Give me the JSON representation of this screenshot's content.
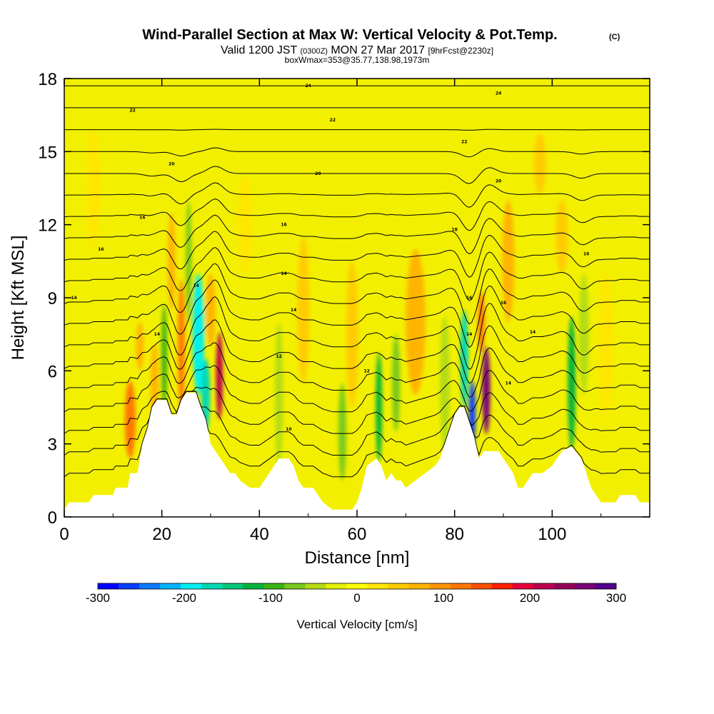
{
  "chart_data": {
    "type": "heatmap",
    "title": "Wind-Parallel Section at Max W: Vertical Velocity & Pot.Temp.",
    "title_mark": "(C)",
    "subtitle": {
      "valid": "Valid 1200 JST",
      "utc": "(0300Z)",
      "date": "MON 27 Mar 2017",
      "fcst": "[9hrFcst@2230z]"
    },
    "subsubtitle": "boxWmax=353@35.77,138.98,1973m",
    "xlabel": "Distance [nm]",
    "ylabel": "Height [Kft MSL]",
    "xlim": [
      0,
      120
    ],
    "ylim": [
      0,
      18
    ],
    "xticks": [
      "0",
      "20",
      "40",
      "60",
      "80",
      "100"
    ],
    "xtick_values": [
      0,
      20,
      40,
      60,
      80,
      100
    ],
    "yticks": [
      "0",
      "3",
      "6",
      "9",
      "12",
      "15",
      "18"
    ],
    "ytick_values": [
      0,
      3,
      6,
      9,
      12,
      15,
      18
    ],
    "colorbar": {
      "label": "Vertical Velocity [cm/s]",
      "range": [
        -300,
        300
      ],
      "tick_labels": [
        "-300",
        "-200",
        "-100",
        "0",
        "100",
        "200",
        "300"
      ],
      "tick_values": [
        -300,
        -200,
        -100,
        0,
        100,
        200,
        300
      ],
      "colors": [
        "#0000ff",
        "#0a3cff",
        "#0a78ff",
        "#00b4ff",
        "#00f0f0",
        "#00d8b4",
        "#00c878",
        "#00b43c",
        "#3cb414",
        "#78c81e",
        "#b4dc14",
        "#e6f000",
        "#ffff00",
        "#ffe600",
        "#ffcc00",
        "#ffb400",
        "#ff9600",
        "#ff7800",
        "#ff5000",
        "#ff1e00",
        "#e6003c",
        "#be0050",
        "#96005a",
        "#780078",
        "#50008c"
      ]
    },
    "terrain_kft": [
      [
        0,
        0.3
      ],
      [
        1,
        0.6
      ],
      [
        5,
        0.6
      ],
      [
        6,
        0.9
      ],
      [
        10,
        0.9
      ],
      [
        10.5,
        1.2
      ],
      [
        13,
        1.2
      ],
      [
        13.5,
        1.8
      ],
      [
        15,
        1.8
      ],
      [
        16,
        3.0
      ],
      [
        17,
        3.6
      ],
      [
        18,
        4.5
      ],
      [
        19,
        4.8
      ],
      [
        21,
        4.8
      ],
      [
        22,
        4.2
      ],
      [
        23,
        4.2
      ],
      [
        24,
        4.8
      ],
      [
        25,
        5.1
      ],
      [
        27,
        5.1
      ],
      [
        28,
        4.5
      ],
      [
        29,
        4.0
      ],
      [
        30,
        3.0
      ],
      [
        31,
        2.7
      ],
      [
        32,
        2.4
      ],
      [
        33,
        2.1
      ],
      [
        34,
        1.8
      ],
      [
        35,
        1.8
      ],
      [
        36,
        1.5
      ],
      [
        38,
        1.2
      ],
      [
        40,
        1.2
      ],
      [
        41,
        1.5
      ],
      [
        42,
        1.8
      ],
      [
        43,
        2.1
      ],
      [
        44,
        2.4
      ],
      [
        46,
        2.4
      ],
      [
        47,
        2.1
      ],
      [
        48,
        1.5
      ],
      [
        49,
        1.2
      ],
      [
        51,
        1.2
      ],
      [
        52,
        0.9
      ],
      [
        53,
        0.6
      ],
      [
        55,
        0.3
      ],
      [
        59,
        0.3
      ],
      [
        60,
        0.6
      ],
      [
        61,
        1.2
      ],
      [
        62,
        2.1
      ],
      [
        64,
        2.4
      ],
      [
        65,
        2.1
      ],
      [
        66,
        1.5
      ],
      [
        67,
        1.8
      ],
      [
        68,
        1.5
      ],
      [
        69,
        1.5
      ],
      [
        70,
        1.2
      ],
      [
        72,
        1.5
      ],
      [
        74,
        1.8
      ],
      [
        76,
        2.1
      ],
      [
        77,
        2.4
      ],
      [
        78,
        3.0
      ],
      [
        79,
        3.6
      ],
      [
        80,
        4.2
      ],
      [
        81,
        4.5
      ],
      [
        82,
        4.5
      ],
      [
        83,
        3.9
      ],
      [
        84,
        3.3
      ],
      [
        85,
        2.4
      ],
      [
        86,
        2.7
      ],
      [
        89,
        2.7
      ],
      [
        90,
        2.4
      ],
      [
        92,
        1.8
      ],
      [
        93,
        1.2
      ],
      [
        94,
        1.2
      ],
      [
        96,
        1.8
      ],
      [
        98,
        1.8
      ],
      [
        100,
        2.1
      ],
      [
        101,
        2.4
      ],
      [
        102,
        2.7
      ],
      [
        104,
        2.9
      ],
      [
        106,
        2.4
      ],
      [
        107,
        1.8
      ],
      [
        108,
        1.2
      ],
      [
        109,
        0.9
      ],
      [
        110,
        0.6
      ],
      [
        113,
        0.6
      ],
      [
        114,
        0.9
      ],
      [
        117,
        0.9
      ],
      [
        118,
        0.6
      ],
      [
        120,
        0.6
      ]
    ],
    "vertical_velocity_cells": [
      {
        "x": 13.5,
        "y": 4.0,
        "w": 2.2,
        "h": 3.2,
        "value": 110
      },
      {
        "x": 15.5,
        "y": 7.0,
        "w": 1.6,
        "h": 2.0,
        "value": 80
      },
      {
        "x": 18.5,
        "y": 5.5,
        "w": 1.6,
        "h": 3.2,
        "value": 60
      },
      {
        "x": 20.5,
        "y": 6.5,
        "w": 1.2,
        "h": 4.5,
        "value": -90
      },
      {
        "x": 22.0,
        "y": 10.5,
        "w": 1.6,
        "h": 4.0,
        "value": 70
      },
      {
        "x": 24.0,
        "y": 7.0,
        "w": 1.4,
        "h": 5.5,
        "value": 130
      },
      {
        "x": 25.5,
        "y": 10.5,
        "w": 1.2,
        "h": 5.0,
        "value": -70
      },
      {
        "x": 27.5,
        "y": 7.5,
        "w": 2.4,
        "h": 5.0,
        "value": -190
      },
      {
        "x": 29.0,
        "y": 5.0,
        "w": 1.8,
        "h": 3.0,
        "value": -170
      },
      {
        "x": 31.8,
        "y": 5.8,
        "w": 1.4,
        "h": 3.6,
        "value": 220
      },
      {
        "x": 30.0,
        "y": 8.5,
        "w": 2.0,
        "h": 3.0,
        "value": 60
      },
      {
        "x": 44.0,
        "y": 5.0,
        "w": 1.6,
        "h": 6.0,
        "value": -50
      },
      {
        "x": 49.0,
        "y": 8.5,
        "w": 2.5,
        "h": 6.0,
        "value": 40
      },
      {
        "x": 57.0,
        "y": 3.5,
        "w": 1.6,
        "h": 4.0,
        "value": -80
      },
      {
        "x": 59.0,
        "y": 7.5,
        "w": 2.5,
        "h": 6.0,
        "value": 40
      },
      {
        "x": 64.5,
        "y": 4.5,
        "w": 1.3,
        "h": 4.5,
        "value": -110
      },
      {
        "x": 68.0,
        "y": 5.5,
        "w": 1.6,
        "h": 4.0,
        "value": -70
      },
      {
        "x": 72.0,
        "y": 8.0,
        "w": 4.0,
        "h": 6.0,
        "value": 70
      },
      {
        "x": 78.0,
        "y": 5.5,
        "w": 2.0,
        "h": 5.5,
        "value": -60
      },
      {
        "x": 82.0,
        "y": 6.5,
        "w": 1.6,
        "h": 4.0,
        "value": -180
      },
      {
        "x": 83.6,
        "y": 4.2,
        "w": 1.4,
        "h": 2.8,
        "value": -260
      },
      {
        "x": 86.5,
        "y": 5.2,
        "w": 1.6,
        "h": 3.6,
        "value": 260
      },
      {
        "x": 85.5,
        "y": 8.0,
        "w": 1.4,
        "h": 2.5,
        "value": 130
      },
      {
        "x": 91.0,
        "y": 10.5,
        "w": 2.5,
        "h": 5.0,
        "value": 60
      },
      {
        "x": 97.5,
        "y": 14.5,
        "w": 2.5,
        "h": 2.5,
        "value": 50
      },
      {
        "x": 104.0,
        "y": 5.5,
        "w": 1.6,
        "h": 5.5,
        "value": -110
      },
      {
        "x": 106.5,
        "y": 7.5,
        "w": 2.0,
        "h": 5.0,
        "value": -60
      },
      {
        "x": 102.0,
        "y": 11.5,
        "w": 2.5,
        "h": 3.0,
        "value": 50
      },
      {
        "x": 111.0,
        "y": 7.0,
        "w": 3.0,
        "h": 6.0,
        "value": 30
      },
      {
        "x": 37.0,
        "y": 12.0,
        "w": 3.0,
        "h": 4.0,
        "value": 30
      },
      {
        "x": 6.0,
        "y": 13.5,
        "w": 3.0,
        "h": 5.0,
        "value": 25
      }
    ],
    "isentropes_kft": [
      1.5,
      2.4,
      3.3,
      4.2,
      5.1,
      6.0,
      6.9,
      7.8,
      8.7,
      9.6,
      10.5,
      11.4,
      12.3,
      13.2,
      14.1,
      15.0,
      15.9,
      16.8,
      17.7
    ],
    "isentrope_labels": [
      {
        "text": "10",
        "x": 46,
        "y": 3.6
      },
      {
        "text": "12",
        "x": 44,
        "y": 6.6
      },
      {
        "text": "12",
        "x": 62,
        "y": 6.0
      },
      {
        "text": "14",
        "x": 19,
        "y": 7.5
      },
      {
        "text": "14",
        "x": 47,
        "y": 8.5
      },
      {
        "text": "14",
        "x": 83,
        "y": 7.5
      },
      {
        "text": "14",
        "x": 91,
        "y": 5.5
      },
      {
        "text": "14",
        "x": 96,
        "y": 7.6
      },
      {
        "text": "14",
        "x": 2,
        "y": 9.0
      },
      {
        "text": "14",
        "x": 27,
        "y": 9.5
      },
      {
        "text": "14",
        "x": 45,
        "y": 10.0
      },
      {
        "text": "16",
        "x": 7.5,
        "y": 11.0
      },
      {
        "text": "16",
        "x": 16,
        "y": 12.3
      },
      {
        "text": "16",
        "x": 45,
        "y": 12.0
      },
      {
        "text": "16",
        "x": 83,
        "y": 9.0
      },
      {
        "text": "16",
        "x": 90,
        "y": 8.8
      },
      {
        "text": "16",
        "x": 107,
        "y": 10.8
      },
      {
        "text": "18",
        "x": 80,
        "y": 11.8
      },
      {
        "text": "20",
        "x": 22,
        "y": 14.5
      },
      {
        "text": "20",
        "x": 52,
        "y": 14.1
      },
      {
        "text": "20",
        "x": 89,
        "y": 13.8
      },
      {
        "text": "22",
        "x": 14,
        "y": 16.7
      },
      {
        "text": "22",
        "x": 55,
        "y": 16.3
      },
      {
        "text": "22",
        "x": 82,
        "y": 15.4
      },
      {
        "text": "24",
        "x": 50,
        "y": 17.7
      },
      {
        "text": "24",
        "x": 89,
        "y": 17.4
      }
    ]
  }
}
